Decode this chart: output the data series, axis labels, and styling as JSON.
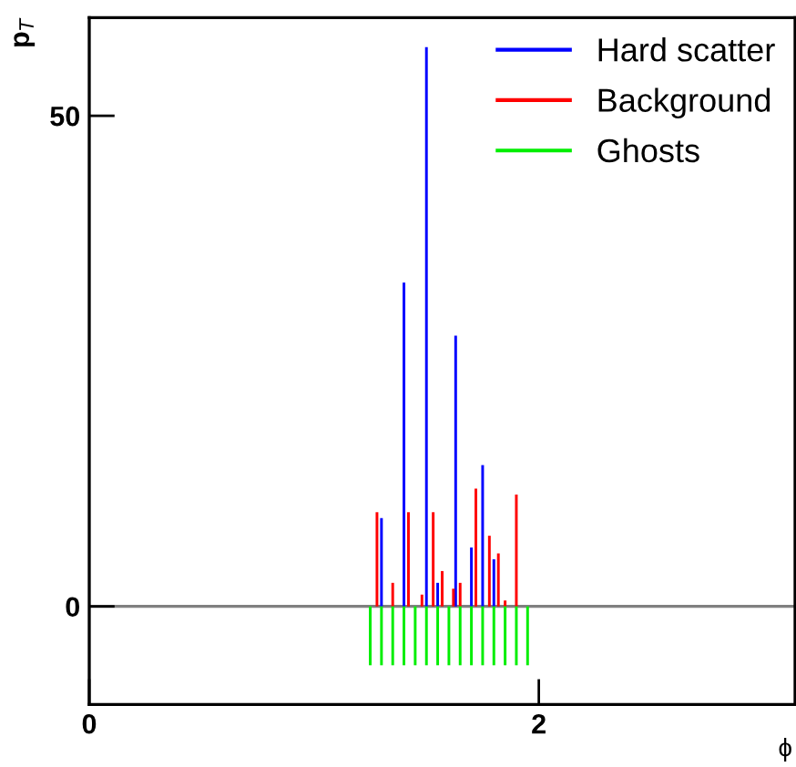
{
  "chart_data": {
    "type": "bar",
    "xlabel": "ϕ",
    "ylabel": "p$_{T}$",
    "xlim": [
      0,
      3.14
    ],
    "ylim": [
      -10,
      60
    ],
    "xticks": [
      0,
      2
    ],
    "yticks": [
      0,
      50
    ],
    "legend": "top right",
    "grid": false,
    "ref_lines": [
      {
        "axis": "y",
        "value": 0,
        "color": "#808080"
      }
    ],
    "series": [
      {
        "name": "Hard scatter",
        "color": "#0000ff",
        "x": [
          1.3,
          1.4,
          1.5,
          1.55,
          1.63,
          1.7,
          1.75,
          1.8
        ],
        "values": [
          9,
          33,
          57,
          2.4,
          27.6,
          6,
          14.4,
          4.8
        ]
      },
      {
        "name": "Background",
        "color": "#ff0000",
        "x": [
          1.28,
          1.35,
          1.42,
          1.48,
          1.53,
          1.57,
          1.62,
          1.65,
          1.72,
          1.78,
          1.82,
          1.85,
          1.9
        ],
        "values": [
          9.6,
          2.4,
          9.6,
          1.2,
          9.6,
          3.6,
          1.8,
          2.4,
          12,
          7.2,
          5.4,
          0.6,
          11.4
        ]
      },
      {
        "name": "Ghosts",
        "color": "#00ee00",
        "x": [
          1.25,
          1.3,
          1.35,
          1.4,
          1.45,
          1.5,
          1.55,
          1.6,
          1.65,
          1.7,
          1.75,
          1.8,
          1.85,
          1.9,
          1.95
        ],
        "values": [
          -6,
          -6,
          -6,
          -6,
          -6,
          -6,
          -6,
          -6,
          -6,
          -6,
          -6,
          -6,
          -6,
          -6,
          -6
        ]
      }
    ]
  }
}
